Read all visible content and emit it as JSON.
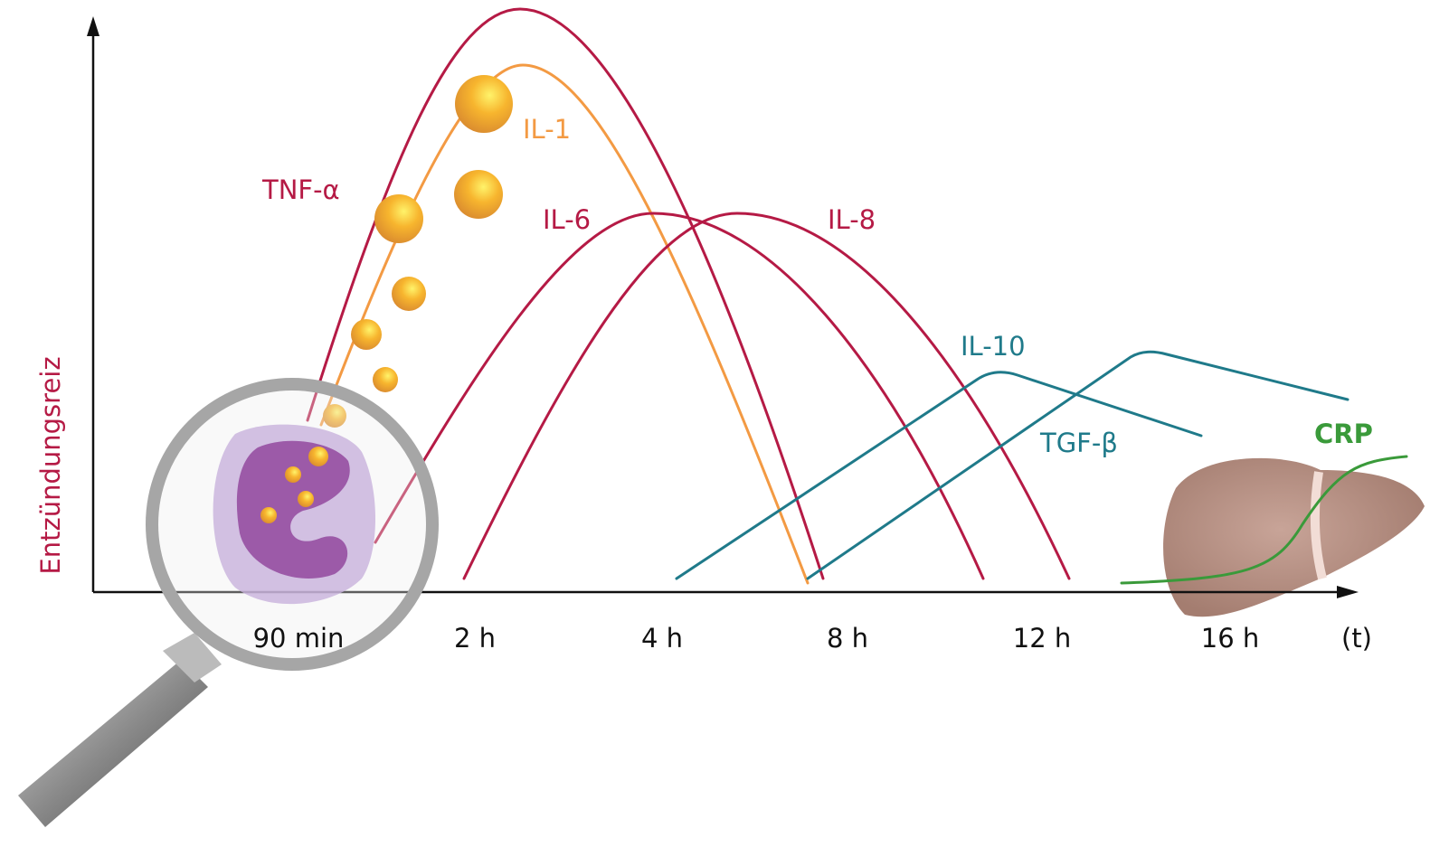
{
  "y_axis_label": "Entzündungsreiz",
  "x_axis_labels": [
    "90 min",
    "2 h",
    "4 h",
    "8 h",
    "12 h",
    "16 h",
    "(t)"
  ],
  "curves": [
    {
      "label": "TNF-α"
    },
    {
      "label": "IL-1"
    },
    {
      "label": "IL-6"
    },
    {
      "label": "IL-8"
    },
    {
      "label": "IL-10"
    },
    {
      "label": "TGF-β"
    },
    {
      "label": "CRP"
    }
  ]
}
